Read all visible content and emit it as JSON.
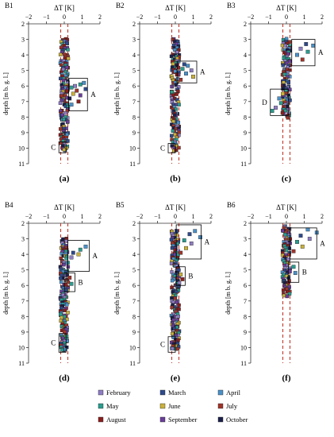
{
  "figure": {
    "x_axis_label": "ΔT [K]",
    "y_axis_label": "depth [m b. g. l.]",
    "x_ticks": [
      -2,
      -1,
      0,
      1,
      2
    ],
    "y_ticks": [
      2,
      3,
      4,
      5,
      6,
      7,
      8,
      9,
      10,
      11
    ],
    "reference_lines_x": [
      -0.2,
      0.2
    ],
    "reference_line_color": "#c0392b"
  },
  "legend": [
    {
      "name": "February",
      "color": "#8e7cc3"
    },
    {
      "name": "March",
      "color": "#2e4a8c"
    },
    {
      "name": "April",
      "color": "#4a90c8"
    },
    {
      "name": "May",
      "color": "#2a9d8f"
    },
    {
      "name": "June",
      "color": "#c9b13a"
    },
    {
      "name": "July",
      "color": "#a0342a"
    },
    {
      "name": "August",
      "color": "#8b1e1e"
    },
    {
      "name": "September",
      "color": "#6a3d9a"
    },
    {
      "name": "October",
      "color": "#1b1f4a"
    }
  ],
  "chart_data": [
    {
      "type": "scatter",
      "title": "B1",
      "caption": "(a)",
      "xlabel": "ΔT [K]",
      "ylabel": "depth [m b. g. l.]",
      "xlim": [
        -2,
        2
      ],
      "ylim": [
        2,
        11
      ],
      "depth_range": [
        3.0,
        10.2
      ],
      "anomalies": [
        {
          "y": 5.8,
          "x": 1.1,
          "month": 2
        },
        {
          "y": 5.9,
          "x": 0.9,
          "month": 3
        },
        {
          "y": 6.0,
          "x": 0.6,
          "month": 0
        },
        {
          "y": 6.1,
          "x": 0.4,
          "month": 3
        },
        {
          "y": 6.2,
          "x": 1.2,
          "month": 1
        },
        {
          "y": 6.3,
          "x": 0.7,
          "month": 5
        },
        {
          "y": 6.5,
          "x": 0.5,
          "month": 4
        },
        {
          "y": 6.6,
          "x": 0.9,
          "month": 7
        },
        {
          "y": 6.8,
          "x": 0.3,
          "month": 8
        },
        {
          "y": 7.0,
          "x": 0.8,
          "month": 6
        },
        {
          "y": 7.2,
          "x": 0.4,
          "month": 2
        }
      ],
      "boxes": [
        {
          "label": "A",
          "x": [
            0.25,
            1.3
          ],
          "y": [
            5.5,
            7.6
          ]
        },
        {
          "label": "C",
          "x": [
            -0.3,
            0.1
          ],
          "y": [
            9.6,
            10.3
          ]
        }
      ]
    },
    {
      "type": "scatter",
      "title": "B2",
      "caption": "(b)",
      "xlabel": "ΔT [K]",
      "ylabel": "depth [m b. g. l.]",
      "xlim": [
        -2,
        2
      ],
      "ylim": [
        2,
        11
      ],
      "depth_range": [
        3.0,
        10.2
      ],
      "anomalies": [
        {
          "y": 4.6,
          "x": 0.5,
          "month": 1
        },
        {
          "y": 4.7,
          "x": 0.7,
          "month": 2
        },
        {
          "y": 4.9,
          "x": 0.4,
          "month": 3
        },
        {
          "y": 5.0,
          "x": 0.9,
          "month": 0
        },
        {
          "y": 5.2,
          "x": 0.6,
          "month": 2
        },
        {
          "y": 5.4,
          "x": 1.0,
          "month": 4
        },
        {
          "y": 5.6,
          "x": 0.3,
          "month": 5
        }
      ],
      "boxes": [
        {
          "label": "A",
          "x": [
            0.1,
            1.2
          ],
          "y": [
            4.4,
            5.8
          ]
        },
        {
          "label": "C",
          "x": [
            -0.4,
            0.0
          ],
          "y": [
            9.7,
            10.3
          ]
        }
      ]
    },
    {
      "type": "scatter",
      "title": "B3",
      "caption": "(c)",
      "xlabel": "ΔT [K]",
      "ylabel": "depth [m b. g. l.]",
      "xlim": [
        -2,
        2
      ],
      "ylim": [
        2,
        11
      ],
      "depth_range": [
        3.0,
        8.1
      ],
      "anomalies": [
        {
          "y": 3.3,
          "x": 1.1,
          "month": 1
        },
        {
          "y": 3.4,
          "x": 1.5,
          "month": 2
        },
        {
          "y": 3.6,
          "x": 0.8,
          "month": 0
        },
        {
          "y": 3.8,
          "x": 1.2,
          "month": 3
        },
        {
          "y": 4.0,
          "x": 0.6,
          "month": 2
        },
        {
          "y": 4.3,
          "x": 0.9,
          "month": 5
        },
        {
          "y": 6.5,
          "x": -0.2,
          "month": 4
        },
        {
          "y": 6.8,
          "x": -0.4,
          "month": 2
        },
        {
          "y": 7.1,
          "x": -0.3,
          "month": 3
        },
        {
          "y": 7.4,
          "x": -0.6,
          "month": 0
        },
        {
          "y": 7.6,
          "x": -0.8,
          "month": 3
        }
      ],
      "boxes": [
        {
          "label": "A",
          "x": [
            0.3,
            1.6
          ],
          "y": [
            3.0,
            4.7
          ]
        },
        {
          "label": "D",
          "x": [
            -0.9,
            0.1
          ],
          "y": [
            6.2,
            7.9
          ]
        }
      ]
    },
    {
      "type": "scatter",
      "title": "B4",
      "caption": "(d)",
      "xlabel": "ΔT [K]",
      "ylabel": "depth [m b. g. l.]",
      "xlim": [
        -2,
        2
      ],
      "ylim": [
        2,
        11
      ],
      "depth_range": [
        3.0,
        10.2
      ],
      "anomalies": [
        {
          "y": 3.5,
          "x": 1.2,
          "month": 2
        },
        {
          "y": 3.7,
          "x": 0.9,
          "month": 3
        },
        {
          "y": 3.9,
          "x": 0.5,
          "month": 1
        },
        {
          "y": 4.0,
          "x": 0.8,
          "month": 4
        },
        {
          "y": 4.2,
          "x": 0.4,
          "month": 0
        },
        {
          "y": 5.5,
          "x": 0.3,
          "month": 5
        },
        {
          "y": 5.9,
          "x": 0.4,
          "month": 3
        }
      ],
      "boxes": [
        {
          "label": "A",
          "x": [
            0.2,
            1.4
          ],
          "y": [
            3.1,
            5.1
          ]
        },
        {
          "label": "B",
          "x": [
            0.0,
            0.6
          ],
          "y": [
            5.2,
            6.4
          ]
        },
        {
          "label": "C",
          "x": [
            -0.3,
            0.1
          ],
          "y": [
            9.1,
            10.3
          ]
        }
      ]
    },
    {
      "type": "scatter",
      "title": "B5",
      "caption": "(e)",
      "xlabel": "ΔT [K]",
      "ylabel": "depth [m b. g. l.]",
      "xlim": [
        -2,
        2
      ],
      "ylim": [
        2,
        11
      ],
      "depth_range": [
        2.5,
        10.2
      ],
      "anomalies": [
        {
          "y": 2.5,
          "x": 1.1,
          "month": 2
        },
        {
          "y": 2.7,
          "x": 0.8,
          "month": 1
        },
        {
          "y": 2.9,
          "x": 1.4,
          "month": 2
        },
        {
          "y": 3.1,
          "x": 0.5,
          "month": 3
        },
        {
          "y": 3.3,
          "x": 0.9,
          "month": 0
        },
        {
          "y": 3.6,
          "x": 0.6,
          "month": 4
        },
        {
          "y": 3.9,
          "x": 0.3,
          "month": 5
        },
        {
          "y": 5.3,
          "x": 0.3,
          "month": 4
        },
        {
          "y": 5.6,
          "x": 0.4,
          "month": 6
        }
      ],
      "boxes": [
        {
          "label": "A",
          "x": [
            0.05,
            1.45
          ],
          "y": [
            2.1,
            4.3
          ]
        },
        {
          "label": "B",
          "x": [
            0.05,
            0.55
          ],
          "y": [
            4.8,
            6.0
          ]
        },
        {
          "label": "C",
          "x": [
            -0.4,
            0.0
          ],
          "y": [
            9.3,
            10.3
          ]
        }
      ]
    },
    {
      "type": "scatter",
      "title": "B6",
      "caption": "(f)",
      "xlabel": "ΔT [K]",
      "ylabel": "depth [m b. g. l.]",
      "xlim": [
        -2,
        2
      ],
      "ylim": [
        2,
        11
      ],
      "depth_range": [
        2.2,
        6.8
      ],
      "anomalies": [
        {
          "y": 2.4,
          "x": 1.2,
          "month": 2
        },
        {
          "y": 2.6,
          "x": 1.7,
          "month": 2
        },
        {
          "y": 2.8,
          "x": 0.8,
          "month": 1
        },
        {
          "y": 3.0,
          "x": 1.3,
          "month": 0
        },
        {
          "y": 3.2,
          "x": 0.6,
          "month": 3
        },
        {
          "y": 3.5,
          "x": 0.9,
          "month": 4
        },
        {
          "y": 3.8,
          "x": 0.4,
          "month": 5
        },
        {
          "y": 4.8,
          "x": 0.4,
          "month": 3
        },
        {
          "y": 5.2,
          "x": 0.5,
          "month": 2
        }
      ],
      "boxes": [
        {
          "label": "A",
          "x": [
            0.2,
            1.7
          ],
          "y": [
            2.3,
            4.3
          ]
        },
        {
          "label": "B",
          "x": [
            0.1,
            0.7
          ],
          "y": [
            4.5,
            5.8
          ]
        }
      ]
    }
  ]
}
